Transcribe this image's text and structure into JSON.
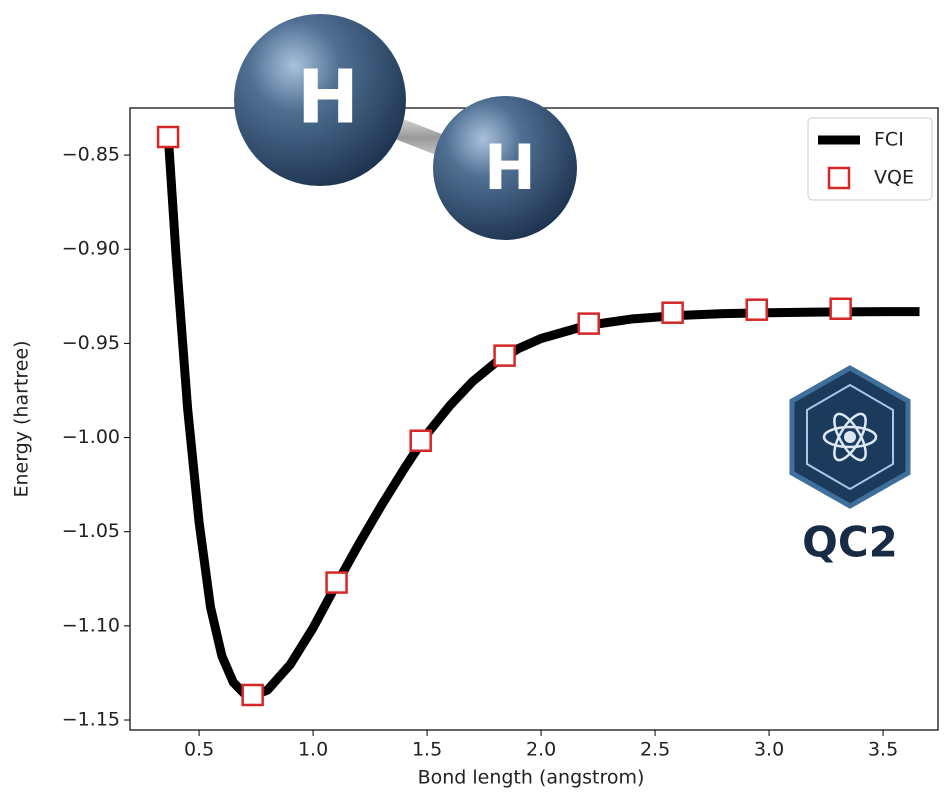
{
  "chart_data": {
    "type": "line",
    "xlabel": "Bond length (angstrom)",
    "ylabel": "Energy (hartree)",
    "xlim": [
      0.197,
      3.741
    ],
    "ylim": [
      -1.1553,
      -0.825
    ],
    "xticks": [
      0.5,
      {
        "value": 1.0,
        "label": "1.0"
      },
      1.5,
      {
        "value": 2.0,
        "label": "2.0"
      },
      2.5,
      {
        "value": 3.0,
        "label": "3.0"
      },
      3.5
    ],
    "yticks": [
      {
        "value": -0.85,
        "label": "−0.85"
      },
      {
        "value": -0.9,
        "label": "−0.90"
      },
      {
        "value": -0.95,
        "label": "−0.95"
      },
      {
        "value": -1.0,
        "label": "−1.00"
      },
      {
        "value": -1.05,
        "label": "−1.05"
      },
      {
        "value": -1.1,
        "label": "−1.10"
      },
      {
        "value": -1.15,
        "label": "−1.15"
      }
    ],
    "legend": "upper right",
    "series": [
      {
        "name": "FCI",
        "type": "line",
        "color": "#000000",
        "x": [
          0.365,
          0.4,
          0.45,
          0.5,
          0.55,
          0.6,
          0.65,
          0.7,
          0.735,
          0.8,
          0.9,
          1.0,
          1.1,
          1.2,
          1.3,
          1.4,
          1.5,
          1.6,
          1.7,
          1.8,
          1.9,
          2.0,
          2.2,
          2.4,
          2.6,
          2.8,
          3.0,
          3.2,
          3.4,
          3.6,
          3.66
        ],
        "values": [
          -0.8404,
          -0.905,
          -0.985,
          -1.045,
          -1.09,
          -1.116,
          -1.13,
          -1.1362,
          -1.1373,
          -1.1341,
          -1.1205,
          -1.1011,
          -1.0785,
          -1.0567,
          -1.036,
          -1.0165,
          -0.9981,
          -0.983,
          -0.9702,
          -0.9603,
          -0.9528,
          -0.9474,
          -0.9405,
          -0.937,
          -0.9352,
          -0.9342,
          -0.9337,
          -0.9334,
          -0.9332,
          -0.9331,
          -0.9331
        ]
      },
      {
        "name": "VQE",
        "type": "scatter",
        "color": "#d62728",
        "x": [
          0.364,
          0.735,
          1.103,
          1.472,
          1.84,
          2.209,
          2.577,
          2.946,
          3.314
        ],
        "values": [
          -0.8404,
          -1.1367,
          -1.077,
          -1.0017,
          -0.9565,
          -0.9395,
          -0.9337,
          -0.9321,
          -0.9316
        ]
      }
    ],
    "annotations": [
      "H",
      "H",
      "QC2"
    ]
  }
}
